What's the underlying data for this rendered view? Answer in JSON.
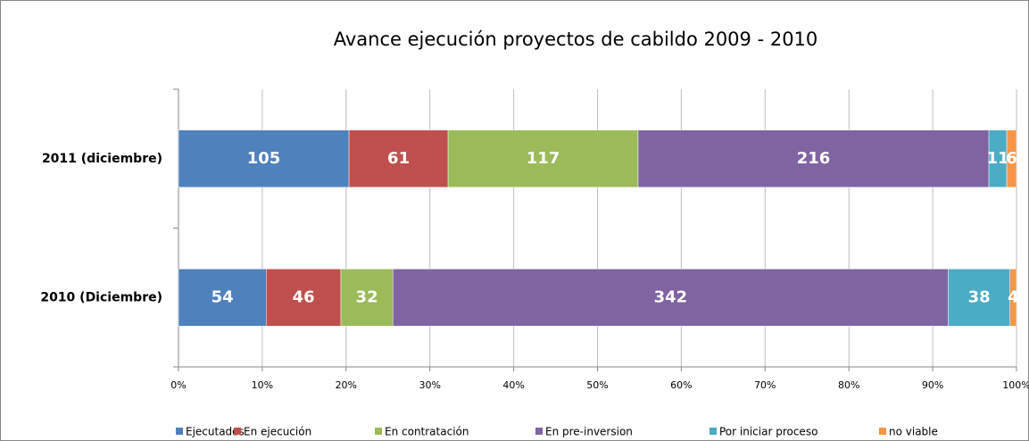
{
  "chart_data": {
    "type": "bar",
    "orientation": "horizontal",
    "stacking": "percent",
    "title": "Avance ejecución proyectos de cabildo 2009 - 2010",
    "categories": [
      "2011 (diciembre)",
      "2010 (Diciembre)"
    ],
    "series": [
      {
        "name": "Ejecutados",
        "color": "#4f81bd",
        "values": [
          105,
          54
        ]
      },
      {
        "name": "En ejecución",
        "color": "#c0504d",
        "values": [
          61,
          46
        ]
      },
      {
        "name": "En contratación",
        "color": "#9bbb59",
        "values": [
          117,
          32
        ]
      },
      {
        "name": "En pre-inversion",
        "color": "#8064a2",
        "values": [
          216,
          342
        ]
      },
      {
        "name": "Por iniciar proceso",
        "color": "#4bacc6",
        "values": [
          11,
          38
        ]
      },
      {
        "name": "no viable",
        "color": "#f79646",
        "values": [
          6,
          4
        ]
      }
    ],
    "xlim": [
      0,
      100
    ],
    "xticks": [
      {
        "value": 0,
        "label": "0%"
      },
      {
        "value": 10,
        "label": "10%"
      },
      {
        "value": 20,
        "label": "20%"
      },
      {
        "value": 30,
        "label": "30%"
      },
      {
        "value": 40,
        "label": "40%"
      },
      {
        "value": 50,
        "label": "50%"
      },
      {
        "value": 60,
        "label": "60%"
      },
      {
        "value": 70,
        "label": "70%"
      },
      {
        "value": 80,
        "label": "80%"
      },
      {
        "value": 90,
        "label": "90%"
      },
      {
        "value": 100,
        "label": "100%"
      }
    ],
    "grid": true,
    "legend": "bottom"
  }
}
